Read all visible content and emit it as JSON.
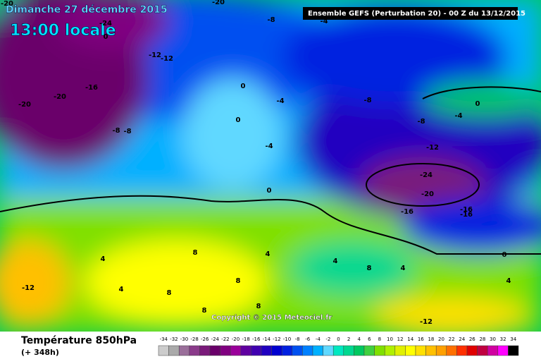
{
  "header": {
    "date": "Dimanche 27 décembre 2015",
    "time": "13:00 locale",
    "run": "Ensemble GEFS  (Perturbation 20)  -  00 Z du 13/12/2015"
  },
  "copyright": "Copyright © 2015 Meteociel.fr",
  "footer": {
    "title": "Température 850hPa",
    "lead": "(+ 348h)"
  },
  "contour_labels": [
    -20,
    -20,
    -24,
    0,
    -8,
    -4,
    -12,
    -12,
    -16,
    -20,
    -20,
    0,
    0,
    -4,
    -8,
    0,
    -4,
    -8,
    -8,
    -8,
    -4,
    -12,
    -24,
    -20,
    0,
    -16,
    -16,
    -16,
    0,
    4,
    4,
    8,
    4,
    -12,
    8,
    4,
    8,
    4,
    8,
    4,
    8,
    8,
    -12
  ],
  "legend": {
    "values": [
      -34,
      -32,
      -30,
      -28,
      -26,
      -24,
      -22,
      -20,
      -18,
      -16,
      -14,
      -12,
      -10,
      -8,
      -6,
      -4,
      -2,
      0,
      2,
      4,
      6,
      8,
      10,
      12,
      14,
      16,
      18,
      20,
      22,
      24,
      26,
      28,
      30,
      32,
      34
    ],
    "colors": [
      "#cccccc",
      "#aaaaaa",
      "#9a6f9a",
      "#8a3a8a",
      "#7a1a7a",
      "#6a006a",
      "#800080",
      "#9a009a",
      "#6000a0",
      "#4000b0",
      "#2000c0",
      "#0000d0",
      "#0020e0",
      "#0050f0",
      "#0080ff",
      "#00b0ff",
      "#60d8ff",
      "#00e8c0",
      "#00d890",
      "#00c860",
      "#40d040",
      "#80e000",
      "#b0f000",
      "#e0f000",
      "#ffff00",
      "#ffe000",
      "#ffc000",
      "#ffa000",
      "#ff7000",
      "#ff3000",
      "#e00000",
      "#c00040",
      "#d000a0",
      "#ff00ff",
      "#000000"
    ]
  }
}
